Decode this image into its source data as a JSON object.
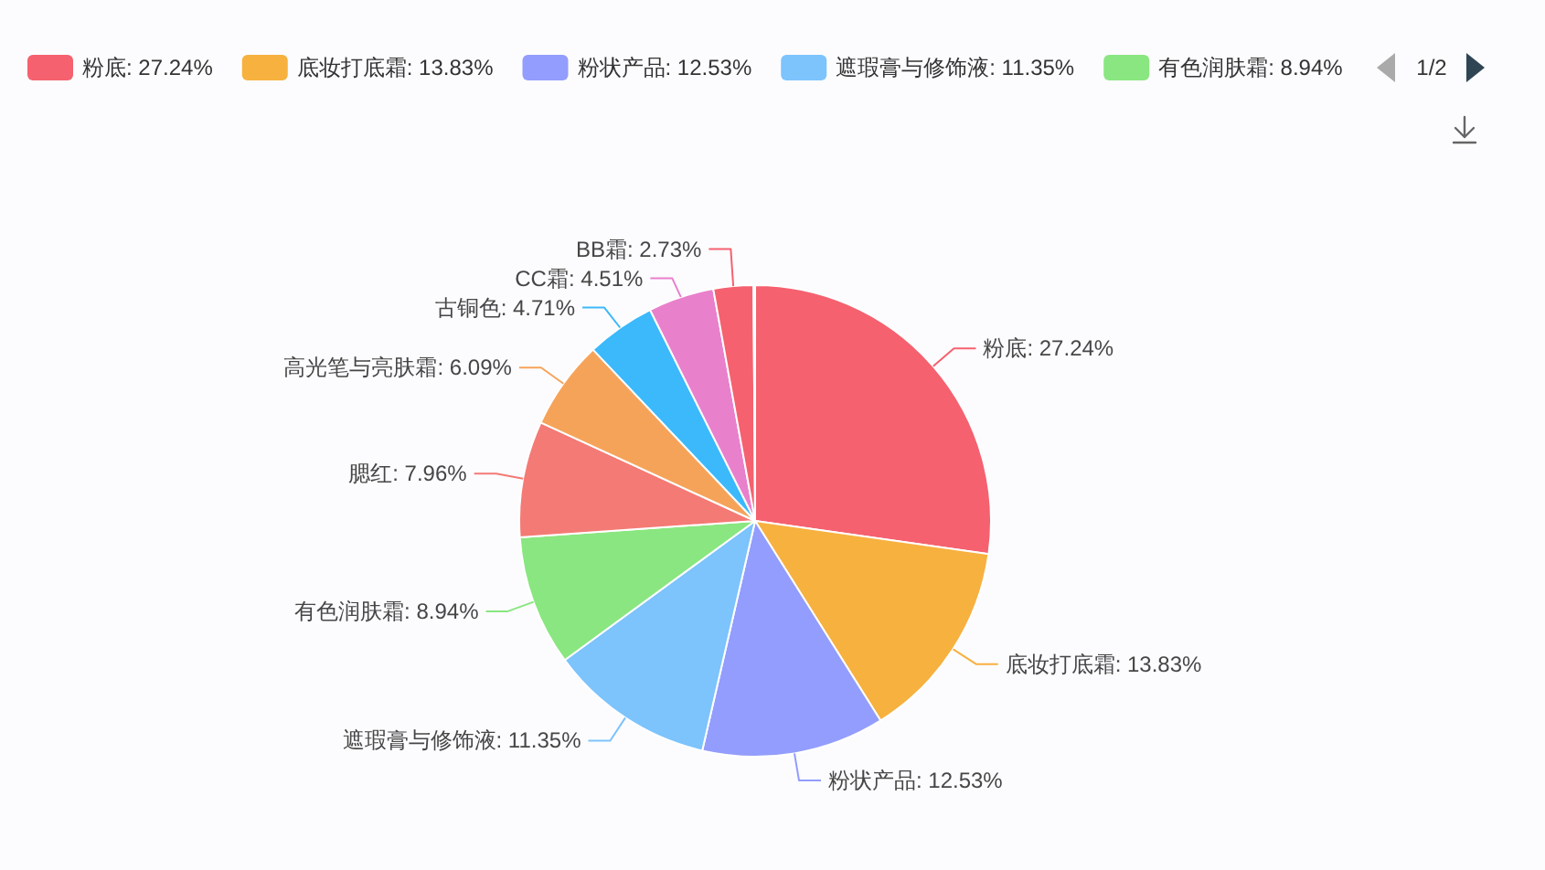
{
  "chart_data": {
    "type": "pie",
    "categories": [
      "粉底",
      "底妆打底霜",
      "粉状产品",
      "遮瑕膏与修饰液",
      "有色润肤霜",
      "腮红",
      "高光笔与亮肤霜",
      "古铜色",
      "CC霜",
      "BB霜",
      null
    ],
    "values": [
      27.24,
      13.83,
      12.53,
      11.35,
      8.94,
      7.96,
      6.09,
      4.71,
      4.51,
      2.73,
      0.11
    ],
    "colors": [
      "#f5616f",
      "#f7b13f",
      "#929dfd",
      "#7dc3fc",
      "#8ae680",
      "#f47a75",
      "#f6a35a",
      "#3bb9fb",
      "#e980cc",
      "#f5616f",
      "#f7b13f"
    ],
    "value_labels": [
      "27.24%",
      "13.83%",
      "12.53%",
      "11.35%",
      "8.94%",
      "7.96%",
      "6.09%",
      "4.71%",
      "4.51%",
      "2.73%",
      null
    ],
    "legend": "top",
    "annotations": [
      "1/2"
    ]
  }
}
